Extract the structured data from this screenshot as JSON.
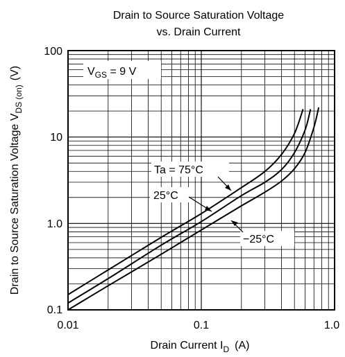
{
  "chart_data": {
    "type": "line",
    "title": [
      "Drain to Source Saturation Voltage",
      "vs. Drain Current"
    ],
    "xlabel": {
      "text": "Drain Current  I",
      "sub": "D",
      "unit": "(A)"
    },
    "ylabel": {
      "text": "Drain to Source Saturation Voltage  V",
      "sub": "DS (on)",
      "unit": "(V)"
    },
    "xscale": "log",
    "yscale": "log",
    "xlim": [
      0.01,
      1.0
    ],
    "ylim": [
      0.1,
      100
    ],
    "grid": true,
    "x_ticks": [
      "0.01",
      "0.1",
      "1.0"
    ],
    "y_ticks": [
      "0.1",
      "1.0",
      "10",
      "100"
    ],
    "condition": {
      "main": "V",
      "sub": "GS",
      "rest": " = 9 V"
    },
    "series": [
      {
        "name": "Ta = 75°C",
        "x": [
          0.01,
          0.02,
          0.05,
          0.1,
          0.2,
          0.3,
          0.4,
          0.5,
          0.58
        ],
        "y": [
          0.15,
          0.29,
          0.69,
          1.3,
          2.6,
          4.0,
          6.3,
          11,
          21
        ]
      },
      {
        "name": "25°C",
        "x": [
          0.01,
          0.02,
          0.05,
          0.1,
          0.2,
          0.3,
          0.4,
          0.5,
          0.6,
          0.66
        ],
        "y": [
          0.12,
          0.23,
          0.56,
          1.05,
          2.1,
          3.0,
          4.2,
          6.6,
          12,
          21
        ]
      },
      {
        "name": "−25°C",
        "x": [
          0.01,
          0.02,
          0.05,
          0.1,
          0.2,
          0.3,
          0.4,
          0.5,
          0.6,
          0.7,
          0.76
        ],
        "y": [
          0.1,
          0.19,
          0.44,
          0.84,
          1.6,
          2.3,
          3.1,
          4.3,
          6.6,
          13,
          22
        ]
      }
    ]
  }
}
